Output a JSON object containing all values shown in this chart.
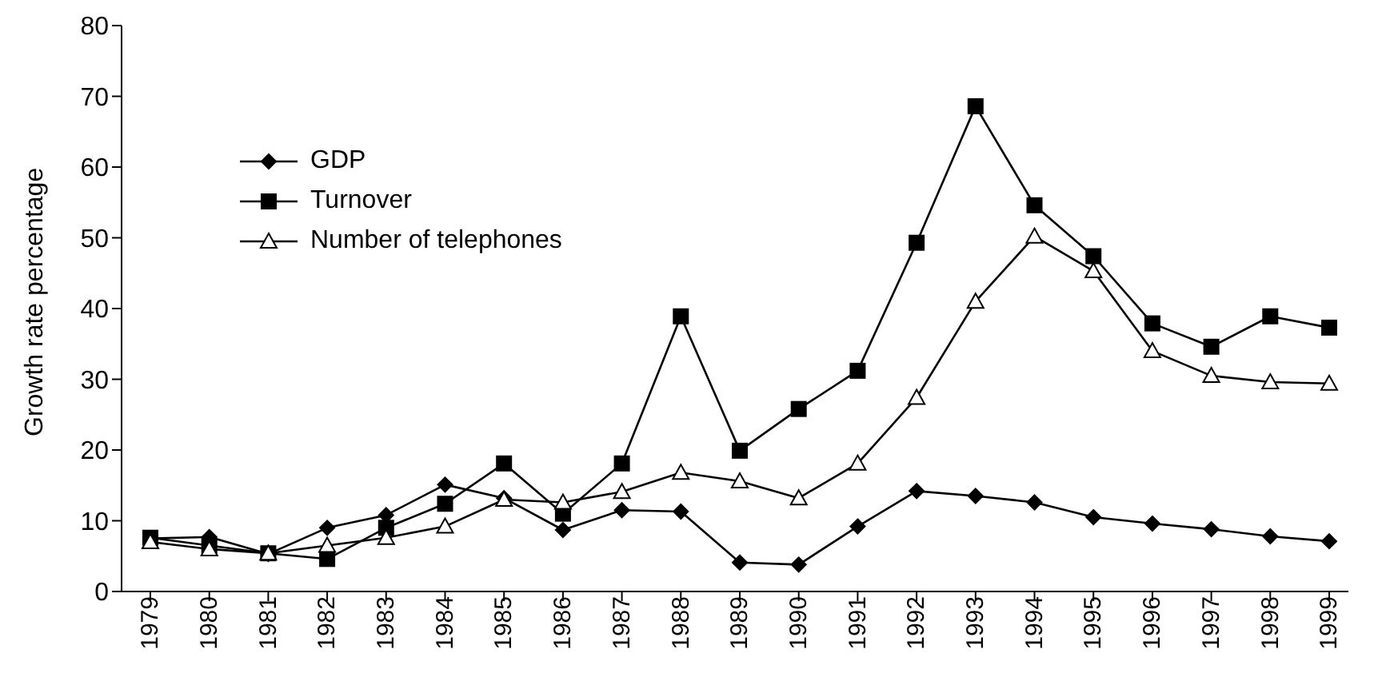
{
  "chart_data": {
    "type": "line",
    "ylabel": "Growth rate percentage",
    "categories": [
      "1979",
      "1980",
      "1981",
      "1982",
      "1983",
      "1984",
      "1985",
      "1986",
      "1987",
      "1988",
      "1989",
      "1990",
      "1991",
      "1992",
      "1993",
      "1994",
      "1995",
      "1996",
      "1997",
      "1998",
      "1999"
    ],
    "series": [
      {
        "name": "GDP",
        "color": "#000000",
        "marker": "diamond",
        "values": [
          7.5,
          7.7,
          5.3,
          9.0,
          10.8,
          15.1,
          13.2,
          8.7,
          11.5,
          11.3,
          4.1,
          3.8,
          9.2,
          14.2,
          13.5,
          12.6,
          10.5,
          9.6,
          8.8,
          7.8,
          7.1
        ]
      },
      {
        "name": "Turnover",
        "color": "#000000",
        "marker": "square",
        "values": [
          7.6,
          6.5,
          5.4,
          4.6,
          9.0,
          12.4,
          18.1,
          11.0,
          18.1,
          38.9,
          19.9,
          25.8,
          31.2,
          49.3,
          68.6,
          54.6,
          47.4,
          37.9,
          34.6,
          38.9,
          37.3
        ]
      },
      {
        "name": "Number of telephones",
        "color": "#000000",
        "marker": "triangle",
        "values": [
          7.0,
          6.0,
          5.4,
          6.5,
          7.6,
          9.2,
          13.0,
          12.6,
          14.1,
          16.8,
          15.6,
          13.2,
          18.1,
          27.4,
          41.0,
          50.2,
          45.3,
          34.0,
          30.5,
          29.6,
          29.4
        ]
      }
    ],
    "ylim": [
      0,
      80
    ],
    "yticks": [
      0,
      10,
      20,
      30,
      40,
      50,
      60,
      70,
      80
    ],
    "grid": false,
    "legend": "top left",
    "line_style": "solid"
  }
}
